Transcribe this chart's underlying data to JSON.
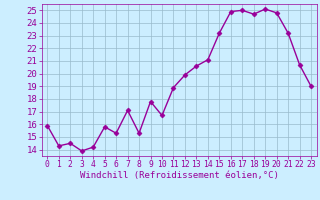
{
  "x": [
    0,
    1,
    2,
    3,
    4,
    5,
    6,
    7,
    8,
    9,
    10,
    11,
    12,
    13,
    14,
    15,
    16,
    17,
    18,
    19,
    20,
    21,
    22,
    23
  ],
  "y": [
    15.9,
    14.3,
    14.5,
    13.9,
    14.2,
    15.8,
    15.3,
    17.1,
    15.3,
    17.8,
    16.7,
    18.9,
    19.9,
    20.6,
    21.1,
    23.2,
    24.9,
    25.0,
    24.7,
    25.1,
    24.8,
    23.2,
    20.7,
    19.0
  ],
  "line_color": "#990099",
  "marker": "D",
  "marker_size": 2.5,
  "linewidth": 1.0,
  "xlabel": "Windchill (Refroidissement éolien,°C)",
  "xlim": [
    -0.5,
    23.5
  ],
  "ylim": [
    13.5,
    25.5
  ],
  "yticks": [
    14,
    15,
    16,
    17,
    18,
    19,
    20,
    21,
    22,
    23,
    24,
    25
  ],
  "xticks": [
    0,
    1,
    2,
    3,
    4,
    5,
    6,
    7,
    8,
    9,
    10,
    11,
    12,
    13,
    14,
    15,
    16,
    17,
    18,
    19,
    20,
    21,
    22,
    23
  ],
  "bg_color": "#cceeff",
  "grid_color": "#99bbcc",
  "xlabel_fontsize": 6.5,
  "ytick_fontsize": 6.5,
  "xtick_fontsize": 5.8,
  "tick_color": "#990099",
  "label_color": "#990099"
}
